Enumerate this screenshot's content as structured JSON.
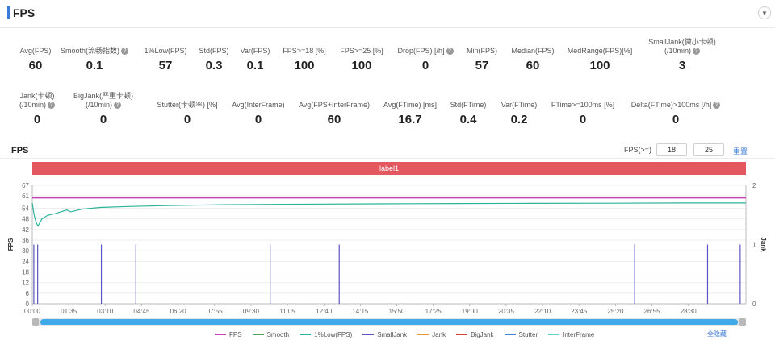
{
  "header": {
    "title": "FPS"
  },
  "summary_row1": [
    {
      "label": "Avg(FPS)",
      "value": "60",
      "help": false
    },
    {
      "label": "Smooth(流畅指数)",
      "value": "0.1",
      "help": true
    },
    {
      "label": "1%Low(FPS)",
      "value": "57",
      "help": false
    },
    {
      "label": "Std(FPS)",
      "value": "0.3",
      "help": false
    },
    {
      "label": "Var(FPS)",
      "value": "0.1",
      "help": false
    },
    {
      "label": "FPS>=18 [%]",
      "value": "100",
      "help": false
    },
    {
      "label": "FPS>=25 [%]",
      "value": "100",
      "help": false
    },
    {
      "label": "Drop(FPS) [/h]",
      "value": "0",
      "help": true
    },
    {
      "label": "Min(FPS)",
      "value": "57",
      "help": false
    },
    {
      "label": "Median(FPS)",
      "value": "60",
      "help": false
    },
    {
      "label": "MedRange(FPS)[%]",
      "value": "100",
      "help": false
    },
    {
      "label": "SmallJank(微小卡顿)",
      "label2": "(/10min)",
      "value": "3",
      "help": true
    }
  ],
  "summary_row2": [
    {
      "label": "Jank(卡顿)",
      "label2": "(/10min)",
      "value": "0",
      "help": true
    },
    {
      "label": "BigJank(严重卡顿)",
      "label2": "(/10min)",
      "value": "0",
      "help": true
    },
    {
      "label": "Stutter(卡顿率) [%]",
      "value": "0",
      "help": false
    },
    {
      "label": "Avg(InterFrame)",
      "value": "0",
      "help": false
    },
    {
      "label": "Avg(FPS+InterFrame)",
      "value": "60",
      "help": false
    },
    {
      "label": "Avg(FTime) [ms]",
      "value": "16.7",
      "help": false
    },
    {
      "label": "Std(FTime)",
      "value": "0.4",
      "help": false
    },
    {
      "label": "Var(FTime)",
      "value": "0.2",
      "help": false
    },
    {
      "label": "FTime>=100ms [%]",
      "value": "0",
      "help": false
    },
    {
      "label": "Delta(FTime)>100ms [/h]",
      "value": "0",
      "help": true
    }
  ],
  "chart_section": {
    "title": "FPS",
    "threshold_label": "FPS(>=)",
    "threshold_1": "18",
    "threshold_2": "25",
    "reset_label": "重置",
    "all_hide_label": "全隐藏",
    "band_label": "label1"
  },
  "chart_data": {
    "type": "line",
    "xlabel": "",
    "ylabel": "FPS",
    "y2label": "Jank",
    "ylim": [
      0,
      67
    ],
    "y_ticks": [
      0,
      6,
      12,
      18,
      24,
      30,
      36,
      42,
      48,
      54,
      61,
      67
    ],
    "y2lim": [
      0,
      2
    ],
    "y2_ticks": [
      0,
      1,
      2
    ],
    "x_ticks": [
      "00:00",
      "01:35",
      "03:10",
      "04:45",
      "06:20",
      "07:55",
      "09:30",
      "11:05",
      "12:40",
      "14:15",
      "15:50",
      "17:25",
      "19:00",
      "20:35",
      "22:10",
      "23:45",
      "25:20",
      "26:55",
      "28:30"
    ],
    "duration_seconds": 1860,
    "series": [
      {
        "name": "FPS",
        "color": "#c941b6",
        "x": [
          0,
          300,
          600,
          900,
          1200,
          1500,
          1800,
          1860
        ],
        "values": [
          60,
          60,
          60,
          60,
          60,
          60,
          60,
          60
        ]
      },
      {
        "name": "Smooth",
        "color": "#4aa564",
        "x": [],
        "values": []
      },
      {
        "name": "1%Low(FPS)",
        "color": "#2bb39b",
        "x": [
          0,
          5,
          10,
          15,
          25,
          40,
          60,
          90,
          100,
          130,
          180,
          250,
          350,
          500,
          700,
          900,
          1100,
          1300,
          1500,
          1700,
          1860
        ],
        "values": [
          57,
          50,
          46,
          44,
          48,
          50,
          51,
          53,
          52,
          53.5,
          54.5,
          55,
          55.5,
          56,
          56.3,
          56.5,
          56.7,
          56.8,
          56.9,
          57,
          57
        ]
      },
      {
        "name": "SmallJank",
        "color": "#5b55c2",
        "axis": "right",
        "x": [
          4,
          14,
          180,
          270,
          620,
          800,
          1570,
          1760,
          1845
        ],
        "values": [
          1,
          1,
          1,
          1,
          1,
          1,
          1,
          1,
          1
        ]
      },
      {
        "name": "Jank",
        "color": "#e89a3c",
        "x": [],
        "values": []
      },
      {
        "name": "BigJank",
        "color": "#d9413f",
        "x": [],
        "values": []
      },
      {
        "name": "Stutter",
        "color": "#3a86d6",
        "x": [],
        "values": []
      },
      {
        "name": "InterFrame",
        "color": "#63d3c6",
        "x": [],
        "values": []
      }
    ],
    "legend_position": "bottom"
  }
}
